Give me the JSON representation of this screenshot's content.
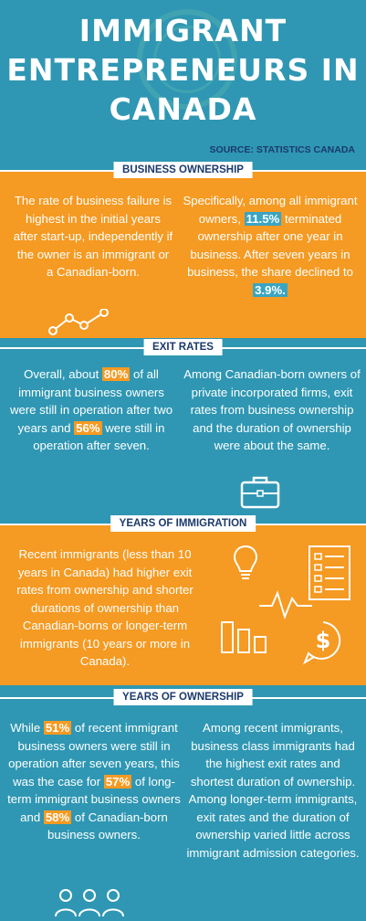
{
  "title": {
    "line1": "IMMIGRANT",
    "line2": "ENTREPRENEURS IN",
    "line3": "CANADA"
  },
  "source": "SOURCE: STATISTICS CANADA",
  "sections": {
    "business_ownership": {
      "header": "BUSINESS OWNERSHIP",
      "left_text": "The rate of business failure is highest in the initial years after start-up, independently if the owner is an immigrant or a Canadian-born.",
      "right_pre": "Specifically, among all immigrant owners,",
      "right_hl1": "11.5%",
      "right_mid": "terminated ownership after one year in business. After seven years in business, the share declined to",
      "right_hl2": "3.9%."
    },
    "exit_rates": {
      "header": "EXIT RATES",
      "left_pre": "Overall, about",
      "left_hl1": "80%",
      "left_mid": "of all immigrant business owners were still in operation after two years and",
      "left_hl2": "56%",
      "left_post": "were still in operation after seven.",
      "right_text": "Among Canadian-born owners of private incorporated firms, exit rates from business ownership and the duration of ownership were about the same."
    },
    "years_of_immigration": {
      "header": "YEARS OF IMMIGRATION",
      "text": "Recent immigrants (less than 10 years in Canada)  had higher exit rates from ownership and shorter durations of ownership than Canadian-borns or longer-term immigrants (10 years or more in Canada)."
    },
    "years_of_ownership": {
      "header": "YEARS OF OWNERSHIP",
      "left_pre": "While",
      "left_hl1": "51%",
      "left_mid1": "of recent immigrant business owners were still in operation after seven years, this was the case for",
      "left_hl2": "57%",
      "left_mid2": "of long-term immigrant business owners and",
      "left_hl3": "58%",
      "left_post": "of Canadian-born business owners.",
      "right_text": "Among recent immigrants, business class immigrants had the highest exit rates and shortest duration of ownership. Among longer-term immigrants, exit rates and the duration of ownership varied little across immigrant admission categories."
    }
  },
  "icons": [
    "trend-line-icon",
    "briefcase-icon",
    "lightbulb-icon",
    "document-icon",
    "pulse-icon",
    "bar-chart-icon",
    "dollar-icon",
    "people-icon"
  ],
  "colors": {
    "blue": "#2f97b3",
    "orange": "#f59a22",
    "navy": "#1b3a6b",
    "white": "#ffffff"
  }
}
